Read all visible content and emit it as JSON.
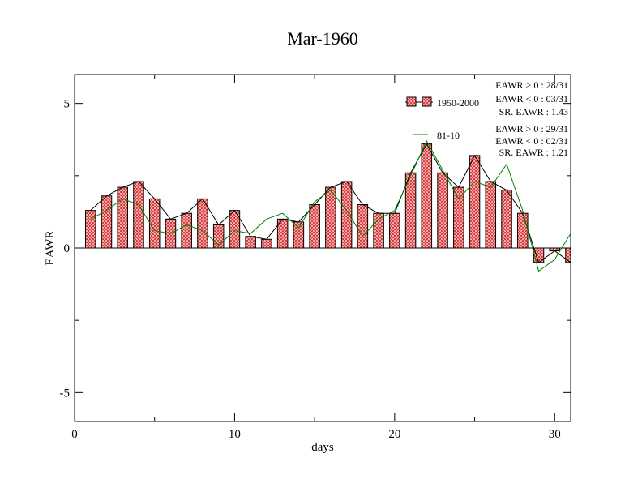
{
  "chart_data": {
    "type": "bar",
    "title": "Mar-1960",
    "xlabel": "days",
    "ylabel": "EAWR",
    "xlim": [
      0,
      31
    ],
    "ylim": [
      -6,
      6
    ],
    "xticks": [
      0,
      10,
      20,
      30
    ],
    "yticks": [
      -5,
      0,
      5
    ],
    "grid": false,
    "legend_position": "top-right",
    "x": [
      1,
      2,
      3,
      4,
      5,
      6,
      7,
      8,
      9,
      10,
      11,
      12,
      13,
      14,
      15,
      16,
      17,
      18,
      19,
      20,
      21,
      22,
      23,
      24,
      25,
      26,
      27,
      28,
      29,
      30,
      31
    ],
    "series": [
      {
        "name": "1950-2000",
        "kind": "bar",
        "color": "#e06060",
        "values": [
          1.3,
          1.8,
          2.1,
          2.3,
          1.7,
          1.0,
          1.2,
          1.7,
          0.8,
          1.3,
          0.4,
          0.3,
          1.0,
          0.9,
          1.5,
          2.1,
          2.3,
          1.5,
          1.2,
          1.2,
          2.6,
          3.6,
          2.6,
          2.1,
          3.2,
          2.3,
          2.0,
          1.2,
          -0.5,
          -0.1,
          -0.5
        ]
      },
      {
        "name": "81-10",
        "kind": "line",
        "color": "#008000",
        "values": [
          1.0,
          1.3,
          1.7,
          1.5,
          0.6,
          0.5,
          0.8,
          0.6,
          0.1,
          0.6,
          0.5,
          1.0,
          1.2,
          0.7,
          1.6,
          2.0,
          1.3,
          0.4,
          1.0,
          1.3,
          2.5,
          3.7,
          2.7,
          1.7,
          2.3,
          2.1,
          2.9,
          1.3,
          -0.8,
          -0.4,
          0.5
        ]
      }
    ],
    "stats": [
      [
        "EAWR > 0 : 28/31",
        "EAWR < 0 : 03/31",
        "SR. EAWR :  1.43"
      ],
      [
        "EAWR > 0 : 29/31",
        "EAWR < 0 : 02/31",
        "SR. EAWR :  1.21"
      ]
    ]
  }
}
